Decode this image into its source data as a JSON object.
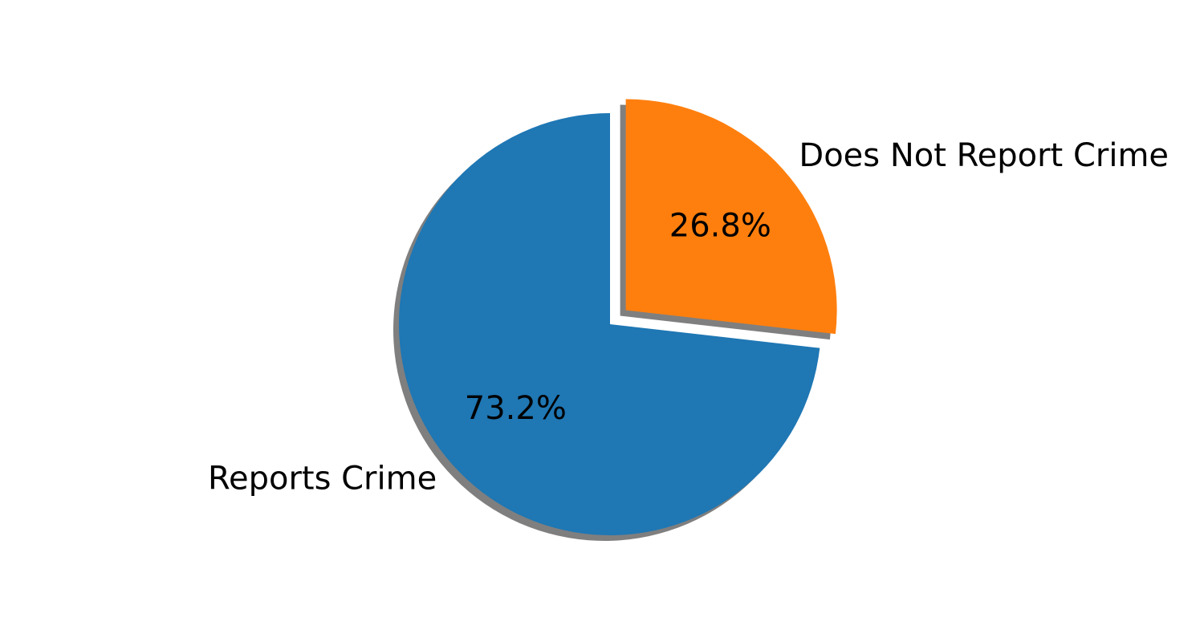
{
  "chart_data": {
    "type": "pie",
    "title": "",
    "categories": [
      "Reports Crime",
      "Does Not Report Crime"
    ],
    "values": [
      73.2,
      26.8
    ],
    "percent_labels": [
      "73.2%",
      "26.8%"
    ],
    "colors": [
      "#1f77b4",
      "#ff7f0e"
    ],
    "exploded": [
      false,
      true
    ],
    "shadow": true,
    "start_angle_deg": 90,
    "direction": "counterclockwise",
    "legend": "none"
  }
}
